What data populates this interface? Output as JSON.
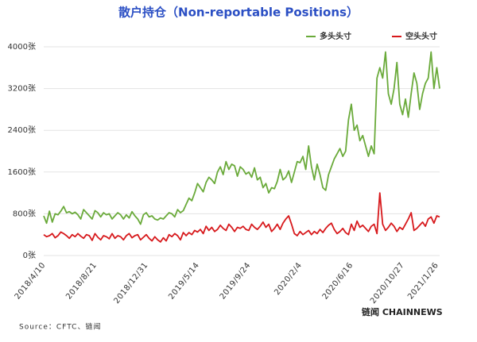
{
  "chart_data": {
    "type": "line",
    "title": "散户持仓（Non-reportable Positions）",
    "source": "Source：CFTC、链闻",
    "logo": "链闻 CHAINNEWS",
    "categories": [
      "2018/4/10",
      null,
      null,
      null,
      null,
      null,
      null,
      null,
      null,
      null,
      null,
      null,
      null,
      null,
      null,
      null,
      null,
      null,
      "2018/8/21",
      null,
      null,
      null,
      null,
      null,
      null,
      null,
      null,
      null,
      null,
      null,
      null,
      null,
      null,
      null,
      null,
      null,
      "2018/12/31",
      null,
      null,
      null,
      null,
      null,
      null,
      null,
      null,
      null,
      null,
      null,
      null,
      null,
      null,
      null,
      null,
      null,
      "2019/5/14",
      null,
      null,
      null,
      null,
      null,
      null,
      null,
      null,
      null,
      null,
      null,
      null,
      null,
      null,
      null,
      null,
      null,
      "2019/9/24",
      null,
      null,
      null,
      null,
      null,
      null,
      null,
      null,
      null,
      null,
      null,
      null,
      null,
      null,
      null,
      null,
      null,
      "2020/2/4",
      null,
      null,
      null,
      null,
      null,
      null,
      null,
      null,
      null,
      null,
      null,
      null,
      null,
      null,
      null,
      null,
      null,
      "2020/6/16",
      null,
      null,
      null,
      null,
      null,
      null,
      null,
      null,
      null,
      null,
      null,
      null,
      null,
      null,
      null,
      null,
      null,
      "2020/10/27",
      null,
      null,
      null,
      null,
      null,
      null,
      null,
      null,
      null,
      null,
      null,
      "2021/1/26",
      null
    ],
    "series": [
      {
        "name": "多头头寸",
        "color": "#6aaa3a",
        "values": [
          760,
          620,
          850,
          640,
          800,
          780,
          850,
          940,
          820,
          840,
          800,
          830,
          780,
          700,
          880,
          820,
          760,
          700,
          860,
          820,
          740,
          820,
          780,
          800,
          700,
          760,
          820,
          780,
          700,
          780,
          720,
          840,
          760,
          700,
          600,
          780,
          820,
          740,
          760,
          700,
          680,
          720,
          700,
          760,
          820,
          800,
          740,
          880,
          820,
          860,
          980,
          1100,
          1050,
          1200,
          1380,
          1300,
          1220,
          1400,
          1500,
          1450,
          1380,
          1600,
          1700,
          1550,
          1800,
          1650,
          1750,
          1720,
          1520,
          1700,
          1650,
          1560,
          1600,
          1500,
          1680,
          1450,
          1500,
          1300,
          1380,
          1200,
          1300,
          1280,
          1420,
          1650,
          1450,
          1500,
          1620,
          1400,
          1600,
          1800,
          1780,
          1900,
          1650,
          2100,
          1700,
          1450,
          1750,
          1550,
          1300,
          1250,
          1550,
          1700,
          1850,
          1950,
          2050,
          1900,
          2000,
          2600,
          2900,
          2400,
          2500,
          2200,
          2300,
          2100,
          1900,
          2100,
          1950,
          3400,
          3600,
          3400,
          3900,
          3100,
          2900,
          3200,
          3700,
          2900,
          2700,
          3000,
          2650,
          3100,
          3500,
          3300,
          2800,
          3100,
          3300,
          3400,
          3900,
          3200,
          3600,
          3200
        ]
      },
      {
        "name": "空头头寸",
        "color": "#d7191c",
        "values": [
          400,
          360,
          380,
          420,
          340,
          380,
          450,
          420,
          380,
          330,
          400,
          360,
          420,
          370,
          330,
          400,
          380,
          290,
          420,
          350,
          300,
          380,
          360,
          320,
          420,
          330,
          380,
          360,
          300,
          380,
          420,
          340,
          380,
          400,
          300,
          350,
          400,
          330,
          280,
          360,
          300,
          260,
          340,
          280,
          400,
          360,
          420,
          380,
          300,
          440,
          380,
          440,
          400,
          480,
          450,
          500,
          420,
          560,
          480,
          540,
          460,
          500,
          580,
          520,
          480,
          600,
          540,
          460,
          540,
          520,
          560,
          500,
          480,
          600,
          540,
          500,
          560,
          640,
          540,
          600,
          460,
          520,
          600,
          500,
          620,
          700,
          760,
          600,
          420,
          380,
          460,
          400,
          440,
          480,
          400,
          460,
          420,
          500,
          440,
          520,
          580,
          620,
          500,
          420,
          460,
          520,
          440,
          400,
          600,
          480,
          660,
          540,
          580,
          520,
          460,
          560,
          600,
          420,
          1200,
          600,
          480,
          540,
          620,
          560,
          460,
          540,
          500,
          600,
          700,
          820,
          480,
          520,
          580,
          640,
          560,
          700,
          740,
          620,
          760,
          740
        ]
      }
    ],
    "ylim": [
      0,
      4000
    ],
    "yticks": [
      {
        "value": 0,
        "label": "0张"
      },
      {
        "value": 800,
        "label": "800张"
      },
      {
        "value": 1600,
        "label": "1600张"
      },
      {
        "value": 2400,
        "label": "2400张"
      },
      {
        "value": 3200,
        "label": "3200张"
      },
      {
        "value": 4000,
        "label": "4000张"
      }
    ],
    "grid": true
  }
}
